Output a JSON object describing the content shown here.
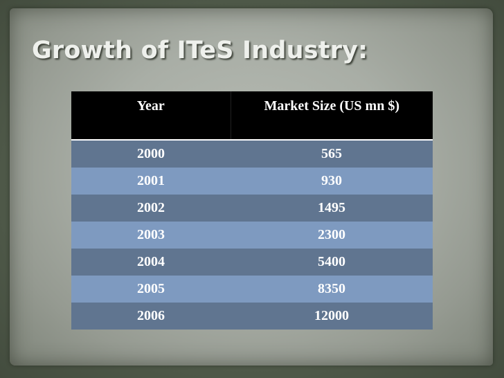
{
  "slide": {
    "title": "Growth of ITeS Industry:"
  },
  "table": {
    "headers": [
      "Year",
      "Market Size (US mn $)"
    ],
    "rows": [
      {
        "year": "2000",
        "value": "565"
      },
      {
        "year": "2001",
        "value": "930"
      },
      {
        "year": "2002",
        "value": "1495"
      },
      {
        "year": "2003",
        "value": "2300"
      },
      {
        "year": "2004",
        "value": "5400"
      },
      {
        "year": "2005",
        "value": "8350"
      },
      {
        "year": "2006",
        "value": "12000"
      }
    ]
  },
  "colors": {
    "header_bg": "#000000",
    "row_dark": "#607590",
    "row_light": "#7e9ac0",
    "title_text": "#eef0ec"
  }
}
